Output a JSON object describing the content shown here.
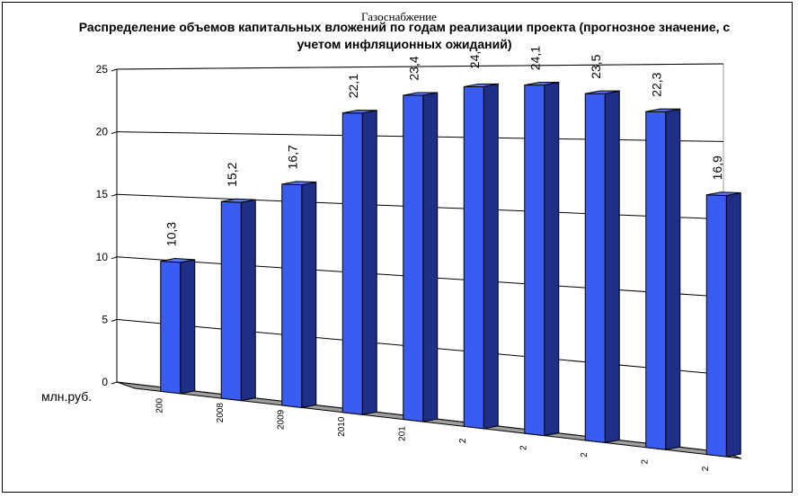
{
  "chart_data": {
    "type": "bar",
    "title": "Распределение объемов капитальных вложений по годам реализации проекта (прогнозное значение, с учетом инфляционных ожиданий)",
    "overlay_title": "Газоснабжение",
    "ylabel": "млн.руб.",
    "ylim": [
      0,
      25
    ],
    "yticks": [
      0,
      5,
      10,
      15,
      20,
      25
    ],
    "grid": true,
    "legend": "none",
    "categories": [
      "200",
      "2008",
      "2009",
      "2010",
      "201",
      "2",
      "2",
      "2",
      "2",
      "2"
    ],
    "values": [
      10.3,
      15.2,
      16.7,
      22.1,
      23.4,
      24.0,
      24.1,
      23.5,
      22.3,
      16.9
    ],
    "data_labels": [
      "10,3",
      "15,2",
      "16,7",
      "22,1",
      "23,4",
      "24,",
      "24,1",
      "23,5",
      "22,3",
      "16,9"
    ],
    "bar_color": "#3a5cf0"
  }
}
